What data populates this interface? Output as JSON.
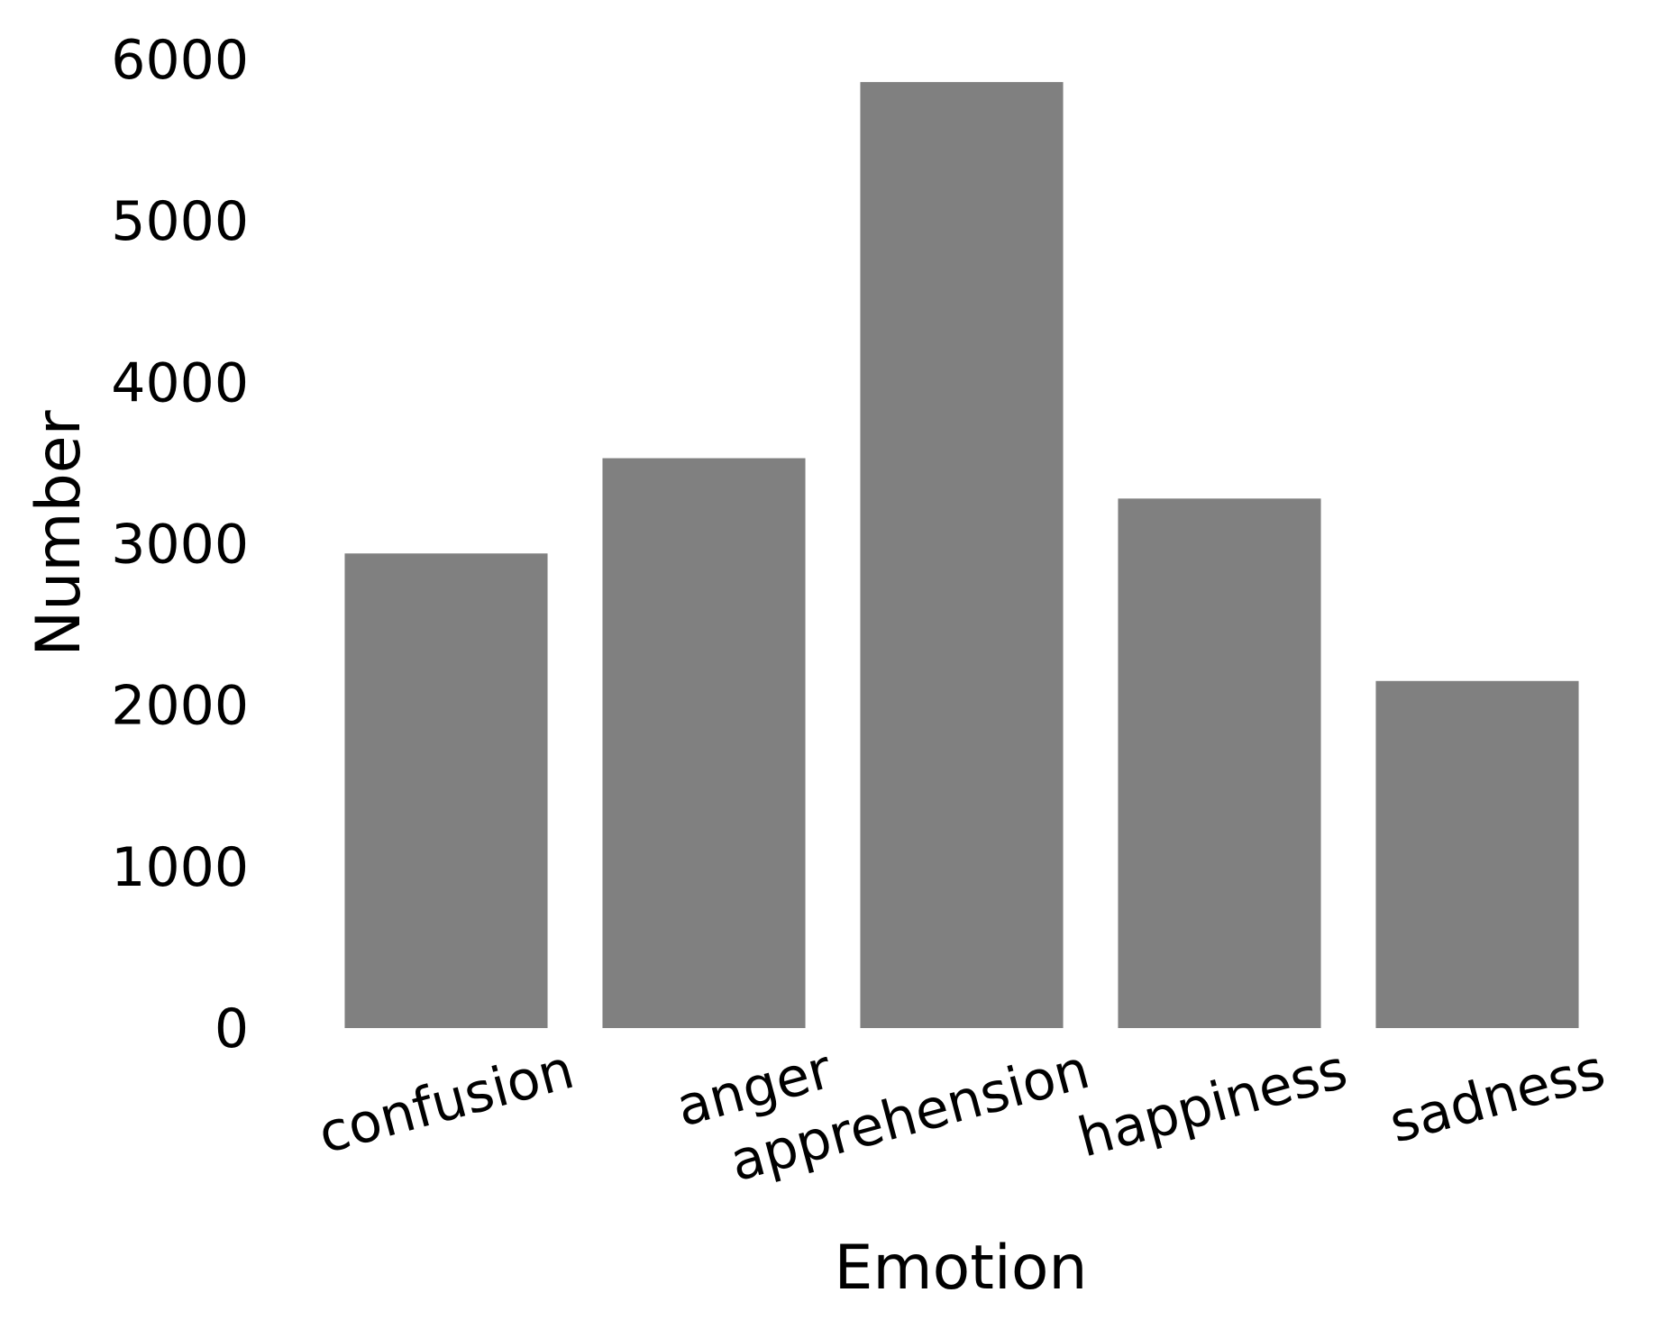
{
  "chart_data": {
    "type": "bar",
    "categories": [
      "confusion",
      "anger",
      "apprehension",
      "happiness",
      "sadness"
    ],
    "values": [
      2940,
      3530,
      5860,
      3280,
      2150
    ],
    "xlabel": "Emotion",
    "ylabel": "Number",
    "ylim": [
      0,
      6000
    ],
    "yticks": [
      "0",
      "1000",
      "2000",
      "3000",
      "4000",
      "5000",
      "6000"
    ],
    "bar_color": "#808080",
    "grid": false,
    "legend": "none"
  }
}
